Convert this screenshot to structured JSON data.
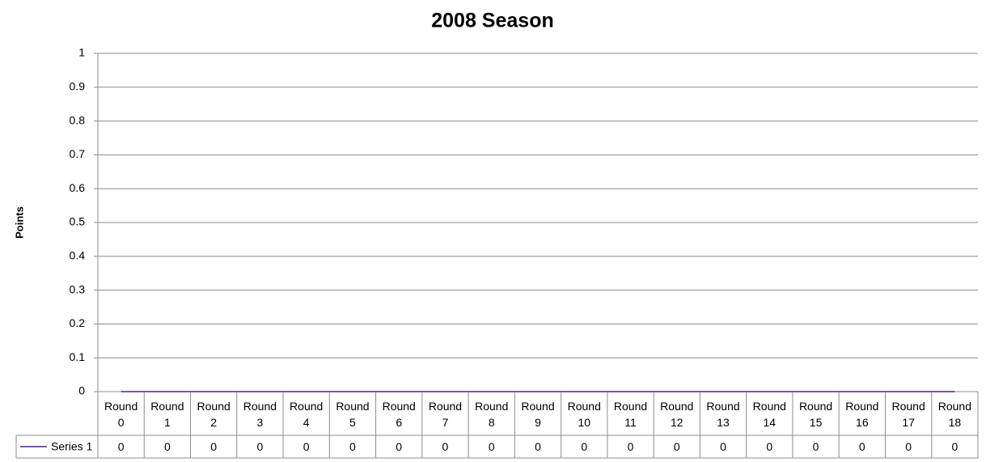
{
  "chart_data": {
    "type": "line",
    "title": "2008 Season",
    "y_label": "Points",
    "categories": [
      "Round 0",
      "Round 1",
      "Round 2",
      "Round 3",
      "Round 4",
      "Round 5",
      "Round 6",
      "Round 7",
      "Round 8",
      "Round 9",
      "Round 10",
      "Round 11",
      "Round 12",
      "Round 13",
      "Round 14",
      "Round 15",
      "Round 16",
      "Round 17",
      "Round 18"
    ],
    "series": [
      {
        "name": "Series 1",
        "color": "#7e57a3",
        "values": [
          0,
          0,
          0,
          0,
          0,
          0,
          0,
          0,
          0,
          0,
          0,
          0,
          0,
          0,
          0,
          0,
          0,
          0,
          0
        ]
      }
    ],
    "ylim": [
      0,
      1
    ],
    "yticks": [
      0,
      0.1,
      0.2,
      0.3,
      0.4,
      0.5,
      0.6,
      0.7,
      0.8,
      0.9,
      1
    ],
    "grid": true,
    "data_table": true
  }
}
